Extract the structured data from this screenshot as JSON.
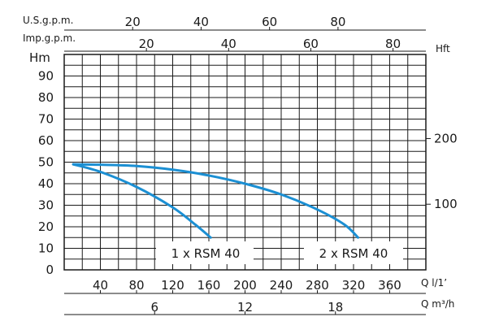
{
  "chart_data": {
    "type": "line",
    "y_left": {
      "label": "Hm",
      "ticks": [
        0,
        10,
        20,
        30,
        40,
        50,
        60,
        70,
        80,
        90
      ],
      "range": [
        0,
        100
      ]
    },
    "y_right": {
      "label": "Hft",
      "ticks": [
        100,
        200
      ]
    },
    "x_axes": {
      "usgpm": {
        "label": "U.S.g.p.m.",
        "ticks": [
          20,
          40,
          60,
          80
        ]
      },
      "impgpm": {
        "label": "Imp.g.p.m.",
        "ticks": [
          20,
          40,
          60,
          80
        ]
      },
      "lmin": {
        "label": "Q l/1’",
        "ticks": [
          40,
          80,
          120,
          160,
          200,
          240,
          280,
          320,
          360
        ],
        "range": [
          0,
          400
        ]
      },
      "m3h": {
        "label": "Q m³/h",
        "ticks": [
          6,
          12,
          18
        ]
      }
    },
    "grid": true,
    "series": [
      {
        "name": "1 x RSM 40",
        "color": "#1b8fd3",
        "points": [
          [
            10,
            49
          ],
          [
            40,
            45.5
          ],
          [
            80,
            38.5
          ],
          [
            120,
            29
          ],
          [
            145,
            21
          ],
          [
            162,
            15
          ]
        ]
      },
      {
        "name": "2 x RSM 40",
        "color": "#1b8fd3",
        "points": [
          [
            10,
            49
          ],
          [
            40,
            48.8
          ],
          [
            80,
            48.2
          ],
          [
            120,
            46.5
          ],
          [
            160,
            43.8
          ],
          [
            200,
            40
          ],
          [
            240,
            35
          ],
          [
            280,
            28
          ],
          [
            310,
            21
          ],
          [
            325,
            15
          ]
        ]
      }
    ]
  }
}
